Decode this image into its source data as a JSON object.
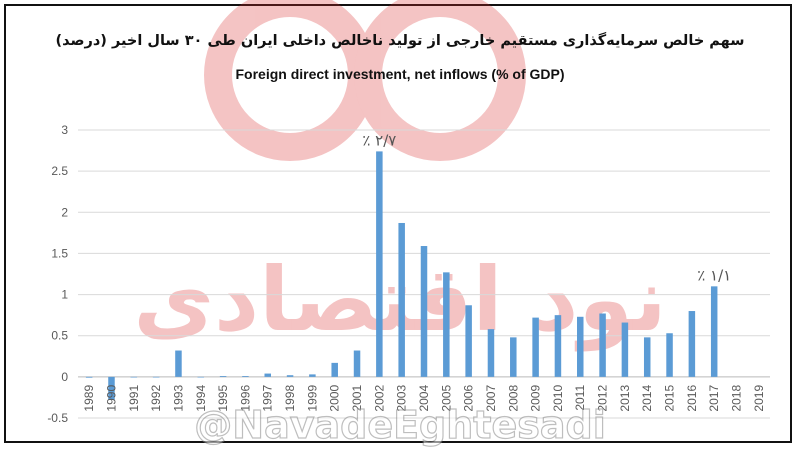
{
  "title_fa": "سهم خالص سرمایه‌گذاری مستقیم خارجی از تولید ناخالص داخلی ایران طی ۳۰ سال اخیر (درصد)",
  "title_en": "Foreign direct investment, net inflows (% of GDP)",
  "watermark": {
    "logo_text": "نود اقتصادی",
    "handle": "@NavadeEghtesadi",
    "color": "#d92a2a"
  },
  "chart_data": {
    "type": "bar",
    "categories": [
      "1989",
      "1990",
      "1991",
      "1992",
      "1993",
      "1994",
      "1995",
      "1996",
      "1997",
      "1998",
      "1999",
      "2000",
      "2001",
      "2002",
      "2003",
      "2004",
      "2005",
      "2006",
      "2007",
      "2008",
      "2009",
      "2010",
      "2011",
      "2012",
      "2013",
      "2014",
      "2015",
      "2016",
      "2017",
      "2018",
      "2019"
    ],
    "values": [
      -0.01,
      -0.28,
      0,
      0,
      0.32,
      0,
      0.01,
      0.01,
      0.04,
      0.02,
      0.03,
      0.17,
      0.32,
      2.74,
      1.87,
      1.59,
      1.27,
      0.87,
      0.58,
      0.48,
      0.72,
      0.75,
      0.73,
      0.77,
      0.66,
      0.48,
      0.53,
      0.8,
      1.1,
      null,
      null
    ],
    "ylim": [
      -0.5,
      3
    ],
    "yticks": [
      "-0.5",
      "0",
      "0.5",
      "1",
      "1.5",
      "2",
      "2.5",
      "3"
    ],
    "grid": true,
    "bar_color": "#5b9bd5",
    "annotations": [
      {
        "category": "2002",
        "text": "٪ ۲/۷"
      },
      {
        "category": "2017",
        "text": "٪ ۱/۱"
      }
    ]
  }
}
